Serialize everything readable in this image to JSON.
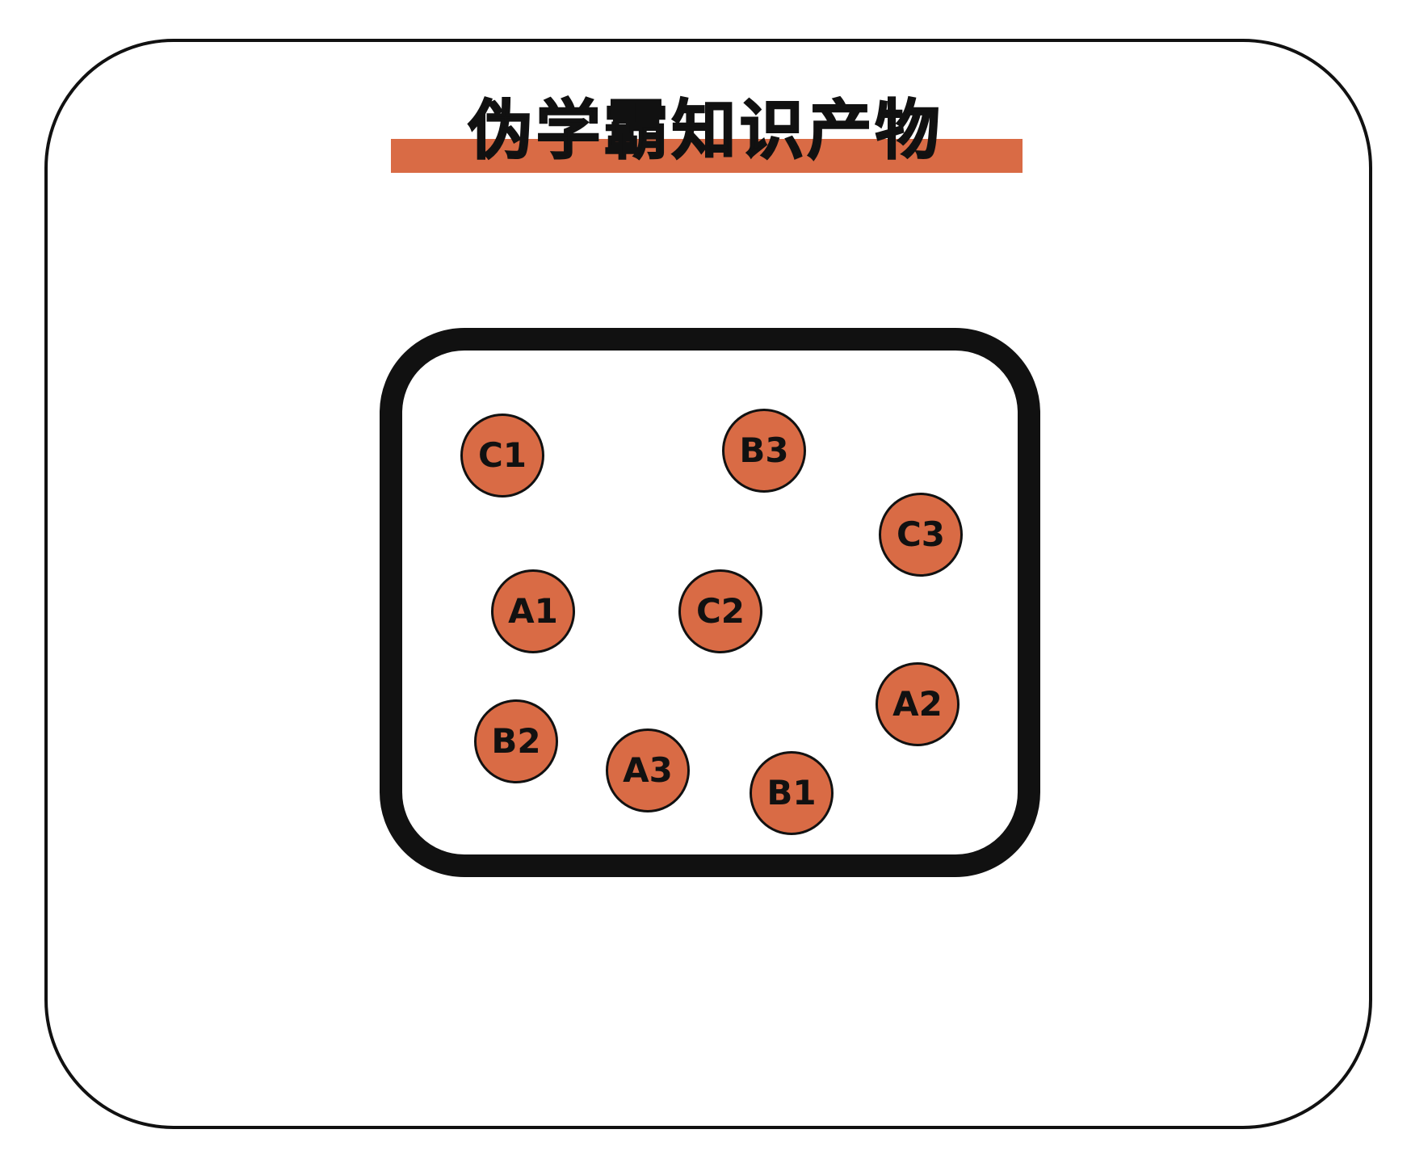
{
  "title": "伪学霸知识产物",
  "colors": {
    "accent": "#D96B45",
    "ink": "#111111",
    "background": "#ffffff"
  },
  "nodes": [
    "C1",
    "B3",
    "C3",
    "A1",
    "C2",
    "A2",
    "B2",
    "A3",
    "B1"
  ]
}
